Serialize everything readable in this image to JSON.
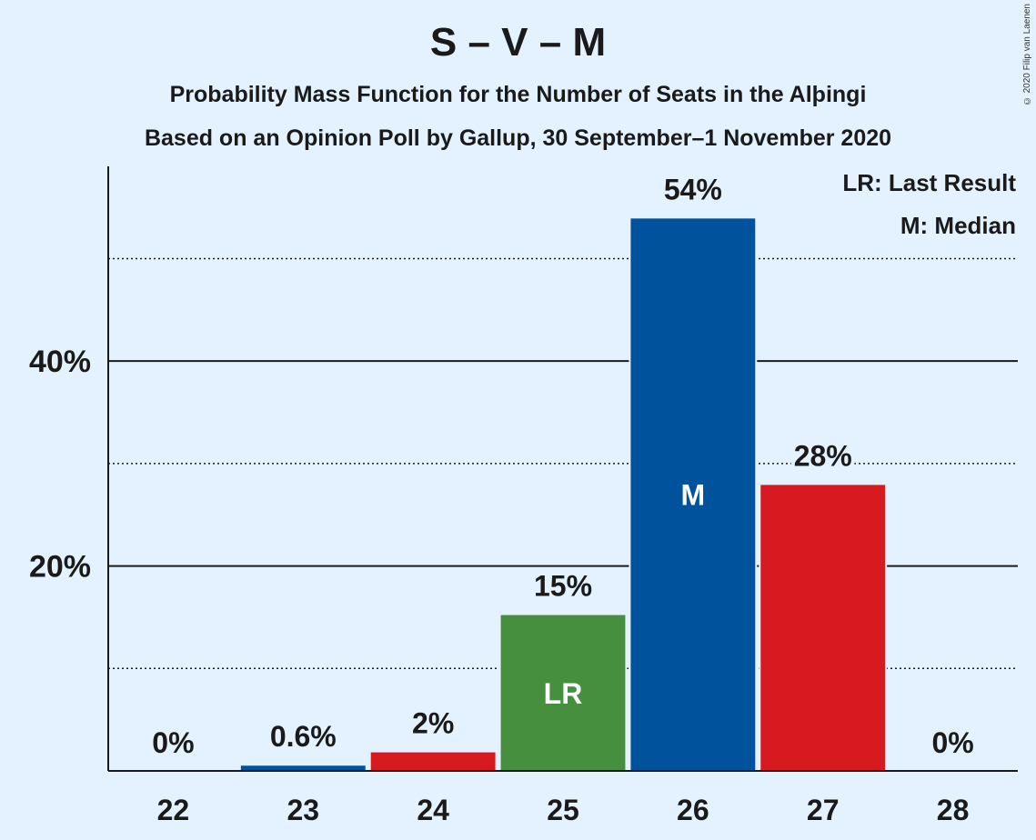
{
  "chart_data": {
    "type": "bar",
    "title": "S – V – M",
    "subtitle": "Probability Mass Function for the Number of Seats in the Alþingi",
    "subtitle2": "Based on an Opinion Poll by Gallup, 30 September–1 November 2020",
    "copyright": "© 2020 Filip van Laenen",
    "legend": [
      "LR: Last Result",
      "M: Median"
    ],
    "legend_placement": "top-right",
    "categories": [
      "22",
      "23",
      "24",
      "25",
      "26",
      "27",
      "28"
    ],
    "values": [
      0,
      0.6,
      1.9,
      15.3,
      54.0,
      28.0,
      0
    ],
    "value_labels": [
      "0%",
      "0.6%",
      "2%",
      "15%",
      "54%",
      "28%",
      "0%"
    ],
    "bar_colors": [
      "#00529c",
      "#00529c",
      "#d71920",
      "#468f3f",
      "#00529c",
      "#d71920",
      "#00529c"
    ],
    "markers": [
      "",
      "",
      "",
      "LR",
      "M",
      "",
      ""
    ],
    "ylim": [
      0,
      59
    ],
    "yticks": [
      20,
      40
    ],
    "ytick_labels": [
      "20%",
      "40%"
    ],
    "minor_gridlines": [
      10,
      30,
      50
    ],
    "grid": true
  }
}
